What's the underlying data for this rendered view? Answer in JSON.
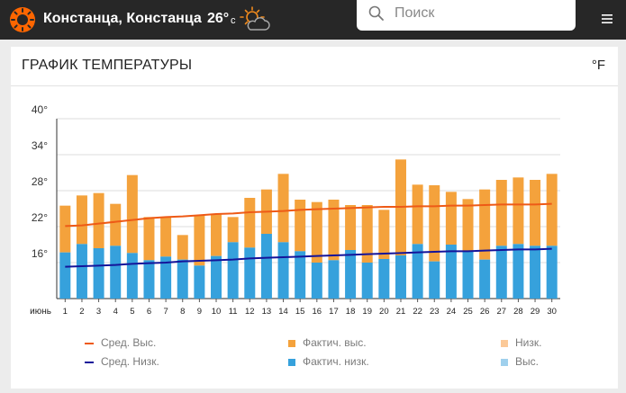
{
  "header": {
    "location": "Констанца, Констанца",
    "temperature": "26°",
    "temp_unit": "с",
    "logo_icon": "sun-logo-icon",
    "weather_icon": "partly-cloudy-icon"
  },
  "search": {
    "placeholder": "Поиск",
    "icon": "search-icon"
  },
  "menu": {
    "icon": "hamburger-menu-icon"
  },
  "card": {
    "title": "ГРАФИК ТЕМПЕРАТУРЫ",
    "unit_toggle": "°F"
  },
  "colors": {
    "accent": "#ff6600",
    "avg_high_line": "#ee5a16",
    "avg_low_line": "#14149a",
    "actual_high": "#f4a23c",
    "actual_low": "#36a1dc",
    "record_low": "#fbc998",
    "record_high": "#9fd0ed",
    "grid": "#dddddd",
    "axis": "#555555"
  },
  "chart_data": {
    "type": "bar",
    "x_prefix": "июнь",
    "categories": [
      "1",
      "2",
      "3",
      "4",
      "5",
      "6",
      "7",
      "8",
      "9",
      "10",
      "11",
      "12",
      "13",
      "14",
      "15",
      "16",
      "17",
      "18",
      "19",
      "20",
      "21",
      "22",
      "23",
      "24",
      "25",
      "26",
      "27",
      "28",
      "29",
      "30"
    ],
    "ylim": [
      10,
      40
    ],
    "yticks": [
      16,
      22,
      28,
      34,
      40
    ],
    "ytick_labels": [
      "16°",
      "22°",
      "28°",
      "34°",
      "40°"
    ],
    "grid": true,
    "legend_position": "bottom",
    "series": [
      {
        "name": "Фактич. выс.",
        "kind": "bar",
        "values": [
          25.5,
          27.2,
          27.6,
          25.8,
          30.6,
          23.6,
          23.6,
          20.6,
          23.8,
          24.0,
          23.6,
          26.8,
          28.2,
          30.8,
          26.5,
          26.1,
          26.5,
          25.6,
          25.6,
          24.8,
          33.2,
          29.0,
          28.9,
          27.8,
          26.6,
          28.2,
          29.8,
          30.2,
          29.8,
          30.8
        ]
      },
      {
        "name": "Фактич. низк.",
        "kind": "bar",
        "values": [
          17.7,
          19.1,
          18.4,
          18.8,
          17.6,
          16.4,
          17.0,
          16.5,
          15.5,
          17.1,
          19.4,
          18.5,
          20.8,
          19.4,
          17.9,
          16.0,
          16.4,
          18.1,
          16.0,
          16.6,
          17.2,
          19.1,
          16.2,
          19.0,
          17.8,
          16.5,
          18.8,
          19.1,
          18.8,
          18.8
        ]
      },
      {
        "name": "Сред. Выс.",
        "kind": "line",
        "values": [
          22.1,
          22.2,
          22.5,
          22.8,
          23.1,
          23.4,
          23.6,
          23.7,
          23.9,
          24.1,
          24.2,
          24.4,
          24.5,
          24.6,
          24.8,
          24.9,
          25.0,
          25.1,
          25.2,
          25.3,
          25.3,
          25.4,
          25.4,
          25.5,
          25.5,
          25.6,
          25.7,
          25.7,
          25.7,
          25.8
        ]
      },
      {
        "name": "Сред. Низк.",
        "kind": "line",
        "values": [
          15.3,
          15.4,
          15.5,
          15.6,
          15.8,
          15.9,
          16.0,
          16.2,
          16.3,
          16.4,
          16.5,
          16.7,
          16.8,
          16.9,
          17.0,
          17.1,
          17.2,
          17.3,
          17.4,
          17.5,
          17.6,
          17.7,
          17.8,
          17.9,
          17.9,
          18.0,
          18.1,
          18.2,
          18.2,
          18.3
        ]
      }
    ],
    "legend": [
      {
        "name": "Сред. Выс.",
        "kind": "line",
        "color": "#ee5a16"
      },
      {
        "name": "Фактич. выс.",
        "kind": "box",
        "color": "#f4a23c"
      },
      {
        "name": "Низк.",
        "kind": "box",
        "color": "#fbc998"
      },
      {
        "name": "Сред. Низк.",
        "kind": "line",
        "color": "#14149a"
      },
      {
        "name": "Фактич. низк.",
        "kind": "box",
        "color": "#36a1dc"
      },
      {
        "name": "Выс.",
        "kind": "box",
        "color": "#9fd0ed"
      }
    ]
  }
}
